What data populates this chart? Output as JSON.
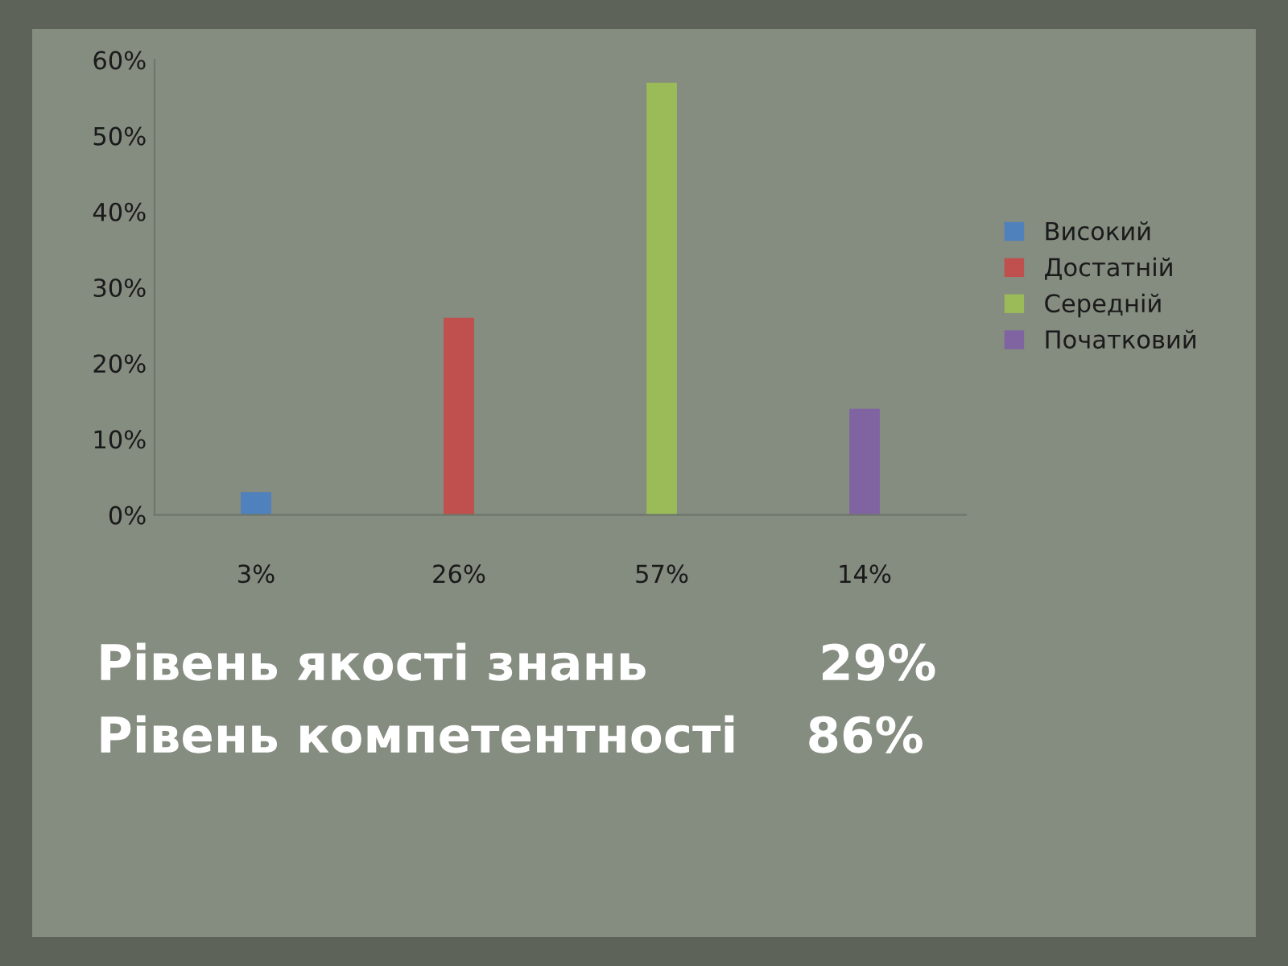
{
  "chart_data": {
    "type": "bar",
    "categories": [
      "3%",
      "26%",
      "57%",
      "14%"
    ],
    "series": [
      {
        "name": "Високий",
        "color": "#4f81bd",
        "values": [
          3,
          null,
          null,
          null
        ]
      },
      {
        "name": "Достатній",
        "color": "#c0504d",
        "values": [
          null,
          26,
          null,
          null
        ]
      },
      {
        "name": "Середній",
        "color": "#9bbb59",
        "values": [
          null,
          null,
          57,
          null
        ]
      },
      {
        "name": "Початковий",
        "color": "#8064a2",
        "values": [
          null,
          null,
          null,
          14
        ]
      }
    ],
    "ylim": [
      0,
      60
    ],
    "yticks": [
      {
        "value": 0,
        "label": "0%"
      },
      {
        "value": 10,
        "label": "10%"
      },
      {
        "value": 20,
        "label": "20%"
      },
      {
        "value": 30,
        "label": "30%"
      },
      {
        "value": 40,
        "label": "40%"
      },
      {
        "value": 50,
        "label": "50%"
      },
      {
        "value": 60,
        "label": "60%"
      }
    ],
    "grid": false,
    "legend": "right",
    "annotations": [
      "Рівень якості знань          29%",
      "Рівень компетентності    86%"
    ]
  }
}
